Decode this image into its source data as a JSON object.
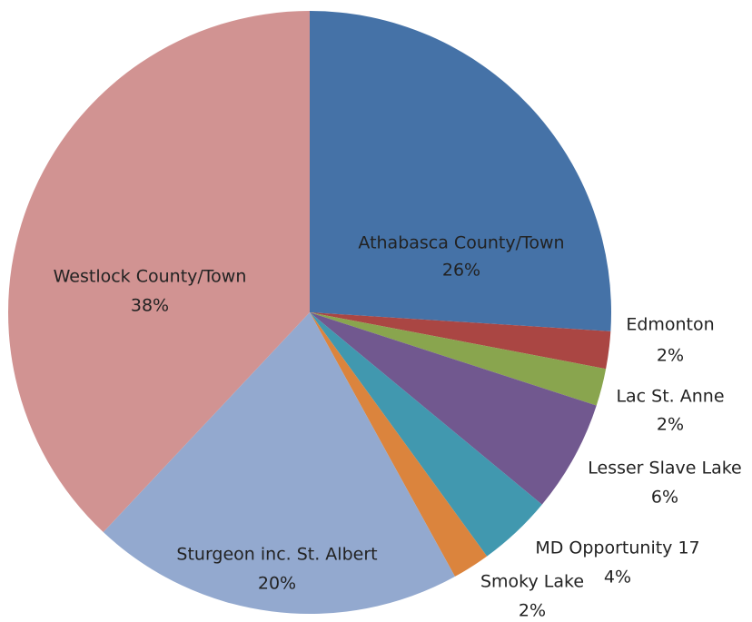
{
  "chart_data": {
    "type": "pie",
    "categories": [
      "Athabasca County/Town",
      "Edmonton",
      "Lac St. Anne",
      "Lesser Slave Lake",
      "MD Opportunity 17",
      "Smoky Lake",
      "Sturgeon inc. St. Albert",
      "Westlock County/Town"
    ],
    "values": [
      26,
      2,
      2,
      6,
      4,
      2,
      20,
      38
    ],
    "value_labels": [
      "26%",
      "2%",
      "2%",
      "6%",
      "4%",
      "2%",
      "20%",
      "38%"
    ],
    "colors": [
      "#4572a7",
      "#aa4643",
      "#89a54e",
      "#71588f",
      "#4198af",
      "#db843d",
      "#93a9cf",
      "#d19392"
    ]
  }
}
